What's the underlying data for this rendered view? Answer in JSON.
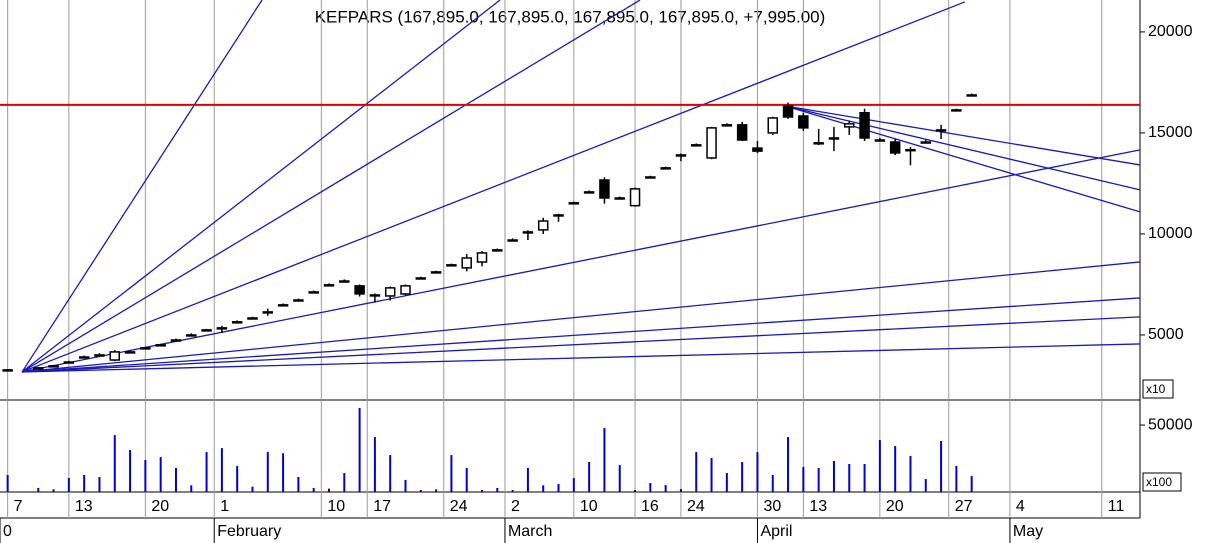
{
  "chart_data": {
    "type": "candlestick",
    "title": "KEFPARS (167,895.0, 167,895.0, 167,895.0, 167,895.0, +7,995.00)",
    "x": [
      0,
      4,
      6,
      8,
      10,
      12,
      14,
      16,
      18,
      20,
      22,
      24,
      26,
      28,
      30,
      32,
      34,
      36,
      38,
      40,
      42,
      44,
      46,
      48,
      50,
      52,
      54,
      56,
      58,
      60,
      62,
      64,
      66,
      68,
      70,
      72,
      74,
      76,
      78,
      80,
      82,
      84,
      86,
      88,
      90,
      92,
      94,
      96,
      98,
      100,
      102,
      104,
      106,
      108,
      110,
      112,
      114,
      116,
      118,
      120,
      122,
      124,
      126
    ],
    "open": [
      3250,
      3350,
      3450,
      3640,
      3890,
      3990,
      3760,
      4140,
      4340,
      4490,
      4730,
      4980,
      5230,
      5330,
      5620,
      5820,
      6120,
      6470,
      6710,
      7110,
      7460,
      7650,
      7430,
      6980,
      6930,
      7030,
      7800,
      8100,
      8450,
      8320,
      8610,
      9190,
      9680,
      10080,
      10200,
      10920,
      11520,
      12060,
      12670,
      11780,
      11400,
      12800,
      13250,
      13890,
      14390,
      13760,
      15380,
      15400,
      14250,
      15000,
      16340,
      15840,
      14510,
      14730,
      15300,
      16000,
      14630,
      14550,
      14170,
      14530,
      15130,
      16120,
      16860
    ],
    "high": [
      3300,
      3420,
      3520,
      3720,
      3980,
      4100,
      4250,
      4220,
      4420,
      4560,
      4820,
      5080,
      5300,
      5450,
      5720,
      5900,
      6300,
      6560,
      6800,
      7200,
      7550,
      7750,
      7500,
      7050,
      7400,
      7500,
      7880,
      8180,
      8530,
      9000,
      9150,
      9280,
      9780,
      10180,
      10800,
      11000,
      11600,
      12150,
      12800,
      11850,
      12300,
      12880,
      13330,
      13980,
      14480,
      15300,
      15480,
      15550,
      14600,
      15800,
      16500,
      16000,
      15200,
      15300,
      15600,
      16200,
      14750,
      14700,
      14300,
      14650,
      15400,
      16200,
      16950
    ],
    "low": [
      3230,
      3330,
      3420,
      3600,
      3850,
      3950,
      3700,
      4100,
      4300,
      4460,
      4700,
      4950,
      5180,
      5100,
      5590,
      5780,
      5950,
      6430,
      6680,
      7080,
      7420,
      7600,
      6900,
      6600,
      6700,
      6950,
      7760,
      8060,
      8400,
      8150,
      8400,
      9150,
      9640,
      9700,
      10000,
      10600,
      11480,
      12020,
      11500,
      11700,
      11350,
      12760,
      13200,
      13600,
      14340,
      13700,
      15340,
      14600,
      14000,
      14900,
      15700,
      15100,
      14400,
      14100,
      14900,
      14600,
      14600,
      13900,
      13400,
      14500,
      14700,
      16100,
      16820
    ],
    "close": [
      3270,
      3370,
      3470,
      3660,
      3910,
      4010,
      4160,
      4160,
      4360,
      4510,
      4750,
      5000,
      5250,
      5350,
      5650,
      5840,
      6140,
      6490,
      6730,
      7130,
      7480,
      7670,
      7030,
      6980,
      7330,
      7430,
      7820,
      8120,
      8470,
      8810,
      9060,
      9210,
      9700,
      10100,
      10640,
      10940,
      11540,
      12080,
      11780,
      11780,
      12230,
      12820,
      13270,
      13910,
      14410,
      15250,
      15400,
      14650,
      14100,
      15740,
      15790,
      15250,
      14500,
      14750,
      15450,
      14750,
      14650,
      14010,
      14150,
      14550,
      15150,
      16140,
      16880
    ],
    "volume": [
      12700,
      3000,
      2000,
      10400,
      12700,
      11200,
      42500,
      31300,
      23900,
      26100,
      17900,
      5000,
      29800,
      32800,
      19400,
      4000,
      30000,
      29000,
      11200,
      3000,
      2500,
      14200,
      62700,
      41000,
      27600,
      9000,
      1500,
      2000,
      27600,
      17900,
      1500,
      3000,
      1500,
      17900,
      5000,
      6000,
      10400,
      22400,
      47800,
      20100,
      1500,
      6700,
      5200,
      2200,
      29800,
      25400,
      14200,
      22400,
      29800,
      12700,
      41000,
      18700,
      17900,
      23100,
      20900,
      20900,
      38800,
      34300,
      26900,
      9700,
      38100,
      19400,
      11900
    ],
    "xlim": [
      -1,
      148
    ],
    "xticks": [
      {
        "value": 0,
        "label": "7"
      },
      {
        "value": 8,
        "label": "13"
      },
      {
        "value": 18,
        "label": "20"
      },
      {
        "value": 27,
        "label": "1"
      },
      {
        "value": 41,
        "label": "10"
      },
      {
        "value": 47,
        "label": "17"
      },
      {
        "value": 57,
        "label": "24"
      },
      {
        "value": 65,
        "label": "2"
      },
      {
        "value": 74,
        "label": "10"
      },
      {
        "value": 82,
        "label": "16"
      },
      {
        "value": 88,
        "label": "24"
      },
      {
        "value": 98,
        "label": "30"
      },
      {
        "value": 104,
        "label": "13"
      },
      {
        "value": 114,
        "label": "20"
      },
      {
        "value": 123,
        "label": "27"
      },
      {
        "value": 131,
        "label": "4"
      },
      {
        "value": 143,
        "label": "11"
      }
    ],
    "month_ticks": [
      {
        "value": -1,
        "label": "0"
      },
      {
        "value": 27,
        "label": "February"
      },
      {
        "value": 65,
        "label": "March"
      },
      {
        "value": 98,
        "label": "April"
      },
      {
        "value": 131,
        "label": "May"
      }
    ],
    "ylim": [
      1780,
      21580
    ],
    "yticks": [
      5000,
      10000,
      15000,
      20000
    ],
    "y_multiplier": "x10",
    "volume_ylim": [
      0,
      68700
    ],
    "volume_yticks": [
      50000
    ],
    "volume_multiplier": "x100",
    "hline": 16390,
    "hline_color": "#e00000",
    "candle_color": "#000000",
    "volume_color": "#0000d0",
    "line_color": "#1a1ab8",
    "grid": true,
    "trend_lines": [
      {
        "x": [
          1.88,
          33.25
        ],
        "y": [
          3170,
          21580
        ]
      },
      {
        "x": [
          1.88,
          64.36
        ],
        "y": [
          3170,
          21580
        ]
      },
      {
        "x": [
          1.88,
          82.66
        ],
        "y": [
          3170,
          21580
        ]
      },
      {
        "x": [
          1.88,
          125.1
        ],
        "y": [
          3170,
          21485
        ]
      },
      {
        "x": [
          1.88,
          148
        ],
        "y": [
          3170,
          14159
        ]
      },
      {
        "x": [
          1.88,
          148
        ],
        "y": [
          3170,
          8615
        ]
      },
      {
        "x": [
          1.88,
          148
        ],
        "y": [
          3170,
          6833
        ]
      },
      {
        "x": [
          1.88,
          148
        ],
        "y": [
          3170,
          5893
        ]
      },
      {
        "x": [
          1.88,
          148
        ],
        "y": [
          3170,
          4556
        ]
      },
      {
        "x": [
          101.6,
          148
        ],
        "y": [
          16337,
          13416
        ]
      },
      {
        "x": [
          101.6,
          148
        ],
        "y": [
          16337,
          12179
        ]
      },
      {
        "x": [
          101.6,
          148
        ],
        "y": [
          16337,
          11090
        ]
      }
    ]
  }
}
